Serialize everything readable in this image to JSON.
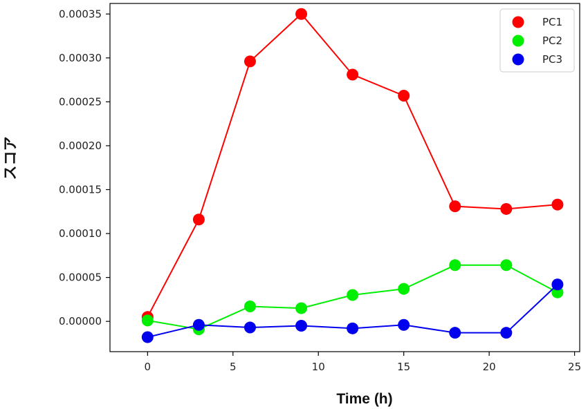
{
  "chart_data": {
    "type": "line",
    "title": "",
    "xlabel": "Time (h)",
    "ylabel": "スコア",
    "x": [
      0,
      3,
      6,
      9,
      12,
      15,
      18,
      21,
      24
    ],
    "series": [
      {
        "name": "PC1",
        "color": "#ff0000",
        "values": [
          5e-06,
          0.000116,
          0.000296,
          0.00035,
          0.000281,
          0.000257,
          0.000131,
          0.000128,
          0.000133
        ]
      },
      {
        "name": "PC2",
        "color": "#00ee00",
        "values": [
          1e-06,
          -9e-06,
          1.7e-05,
          1.5e-05,
          3e-05,
          3.7e-05,
          6.4e-05,
          6.4e-05,
          3.3e-05
        ]
      },
      {
        "name": "PC3",
        "color": "#0000ee",
        "values": [
          -1.8e-05,
          -4e-06,
          -7e-06,
          -5e-06,
          -8e-06,
          -4e-06,
          -1.3e-05,
          -1.3e-05,
          4.2e-05
        ]
      }
    ],
    "xlim": [
      -2.2,
      25.3
    ],
    "ylim": [
      -3.45e-05,
      0.000362
    ],
    "xticks": [
      0,
      5,
      10,
      15,
      20,
      25
    ],
    "xtick_labels": [
      "0",
      "5",
      "10",
      "15",
      "20",
      "25"
    ],
    "yticks": [
      0,
      5e-05,
      0.0001,
      0.00015,
      0.0002,
      0.00025,
      0.0003,
      0.00035
    ],
    "ytick_labels": [
      "0.00000",
      "0.00005",
      "0.00010",
      "0.00015",
      "0.00020",
      "0.00025",
      "0.00030",
      "0.00035"
    ],
    "legend": {
      "position": "top-right",
      "entries": [
        "PC1",
        "PC2",
        "PC3"
      ]
    },
    "grid": false
  }
}
